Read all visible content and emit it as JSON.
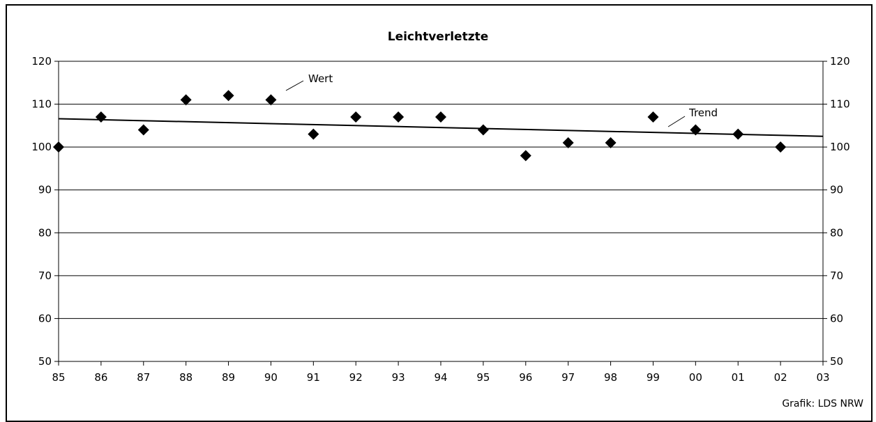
{
  "chart_data": {
    "type": "scatter",
    "title": "Leichtverletzte",
    "categories": [
      "85",
      "86",
      "87",
      "88",
      "89",
      "90",
      "91",
      "92",
      "93",
      "94",
      "95",
      "96",
      "97",
      "98",
      "99",
      "00",
      "01",
      "02",
      "03"
    ],
    "series": [
      {
        "name": "Wert",
        "type": "scatter",
        "marker": "diamond",
        "values": [
          100,
          107,
          104,
          111,
          112,
          111,
          103,
          107,
          107,
          107,
          104,
          98,
          101,
          101,
          107,
          104,
          103,
          100,
          null
        ]
      },
      {
        "name": "Trend",
        "type": "line",
        "start": 106.6,
        "end": 102.5
      }
    ],
    "ylim": [
      50,
      120
    ],
    "yticks": [
      50,
      60,
      70,
      80,
      90,
      100,
      110,
      120
    ],
    "y_axis_both_sides": true,
    "grid": true,
    "annotations": [
      {
        "text": "Wert",
        "target": "Wert"
      },
      {
        "text": "Trend",
        "target": "Trend"
      }
    ],
    "credit": "Grafik: LDS NRW",
    "colors": {
      "marker": "#000000",
      "line": "#000000",
      "grid": "#000000",
      "background": "#ffffff"
    }
  }
}
